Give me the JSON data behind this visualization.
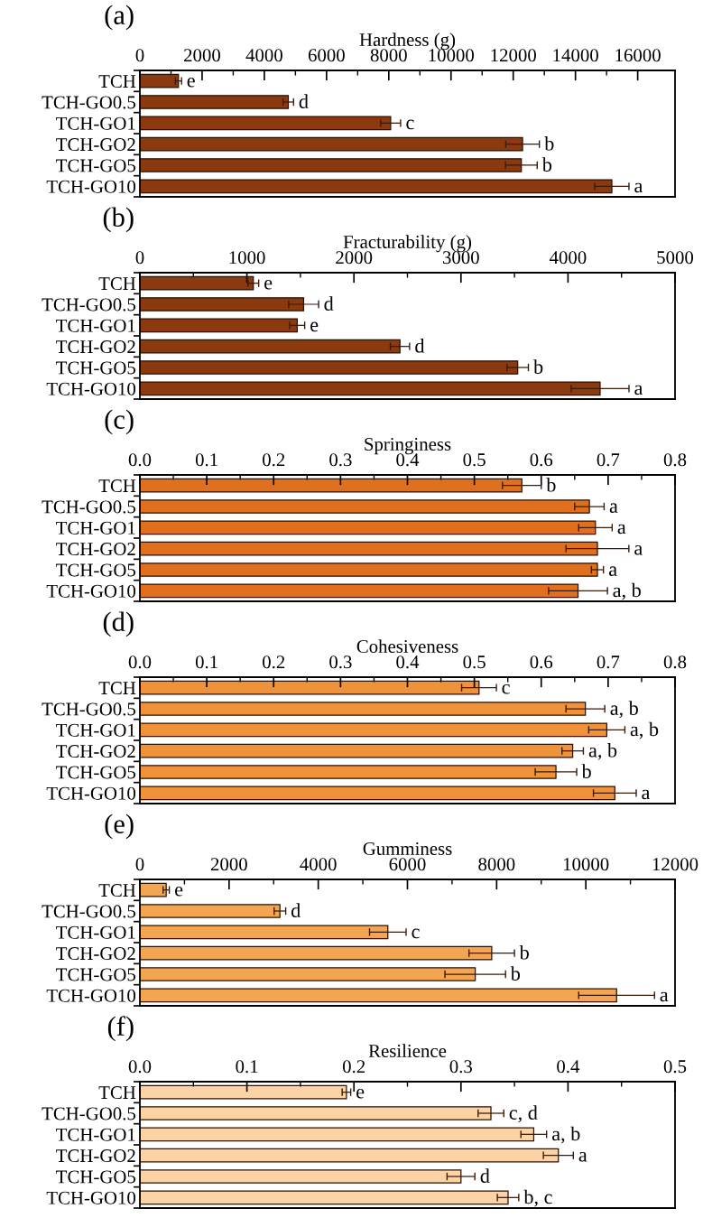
{
  "chart_data": [
    {
      "type": "bar",
      "orientation": "horizontal",
      "title": "(a)",
      "xlabel": "Hardness (g)",
      "categories": [
        "TCH",
        "TCH-GO0.5",
        "TCH-GO1",
        "TCH-GO2",
        "TCH-GO5",
        "TCH-GO10"
      ],
      "color": "#8b3a0f",
      "values": [
        1240,
        4770,
        8060,
        12300,
        12260,
        15170
      ],
      "errors": [
        100,
        170,
        320,
        540,
        510,
        550
      ],
      "xlim": [
        0,
        17200
      ],
      "xticks": [
        0,
        2000,
        4000,
        6000,
        8000,
        10000,
        12000,
        14000,
        16000
      ],
      "annotations": [
        {
          "text": "e",
          "x": 1340,
          "y": "TCH"
        },
        {
          "text": "d",
          "x": 4940,
          "y": "TCH-GO0.5"
        },
        {
          "text": "c",
          "x": 8380,
          "y": "TCH-GO1"
        },
        {
          "text": "b",
          "x": 12840,
          "y": "TCH-GO2"
        },
        {
          "text": "b",
          "x": 12770,
          "y": "TCH-GO5"
        },
        {
          "text": "a",
          "x": 15720,
          "y": "TCH-GO10"
        }
      ]
    },
    {
      "type": "bar",
      "orientation": "horizontal",
      "title": "(b)",
      "xlabel": "Fracturability (g)",
      "categories": [
        "TCH",
        "TCH-GO0.5",
        "TCH-GO1",
        "TCH-GO2",
        "TCH-GO5",
        "TCH-GO10"
      ],
      "color": "#8b3a0f",
      "values": [
        1060,
        1530,
        1470,
        2430,
        3530,
        4300
      ],
      "errors": [
        50,
        140,
        70,
        90,
        100,
        270
      ],
      "xlim": [
        0,
        5000
      ],
      "xticks": [
        0,
        1000,
        2000,
        3000,
        4000,
        5000
      ],
      "annotations": [
        {
          "text": "e",
          "x": 1110,
          "y": "TCH"
        },
        {
          "text": "d",
          "x": 1670,
          "y": "TCH-GO0.5"
        },
        {
          "text": "e",
          "x": 1540,
          "y": "TCH-GO1"
        },
        {
          "text": "d",
          "x": 2520,
          "y": "TCH-GO2"
        },
        {
          "text": "b",
          "x": 3630,
          "y": "TCH-GO5"
        },
        {
          "text": "a",
          "x": 4570,
          "y": "TCH-GO10"
        }
      ]
    },
    {
      "type": "bar",
      "orientation": "horizontal",
      "title": "(c)",
      "xlabel": "Springiness",
      "categories": [
        "TCH",
        "TCH-GO0.5",
        "TCH-GO1",
        "TCH-GO2",
        "TCH-GO5",
        "TCH-GO10"
      ],
      "color": "#e0701e",
      "values": [
        0.571,
        0.672,
        0.681,
        0.684,
        0.684,
        0.655
      ],
      "errors": [
        0.029,
        0.022,
        0.025,
        0.047,
        0.009,
        0.044
      ],
      "xlim": [
        0,
        0.8
      ],
      "xticks": [
        {
          "value": 0,
          "label": "0.0"
        },
        {
          "value": 0.1,
          "label": "0.1"
        },
        {
          "value": 0.2,
          "label": "0.2"
        },
        {
          "value": 0.3,
          "label": "0.3"
        },
        {
          "value": 0.4,
          "label": "0.4"
        },
        {
          "value": 0.5,
          "label": "0.5"
        },
        {
          "value": 0.6,
          "label": "0.6"
        },
        {
          "value": 0.7,
          "label": "0.7"
        },
        {
          "value": 0.8,
          "label": "0.8"
        }
      ],
      "annotations": [
        {
          "text": "b",
          "x": 0.6,
          "y": "TCH"
        },
        {
          "text": "a",
          "x": 0.694,
          "y": "TCH-GO0.5"
        },
        {
          "text": "a",
          "x": 0.706,
          "y": "TCH-GO1"
        },
        {
          "text": "a",
          "x": 0.731,
          "y": "TCH-GO2"
        },
        {
          "text": "a",
          "x": 0.693,
          "y": "TCH-GO5"
        },
        {
          "text": "a, b",
          "x": 0.699,
          "y": "TCH-GO10"
        }
      ]
    },
    {
      "type": "bar",
      "orientation": "horizontal",
      "title": "(d)",
      "xlabel": "Cohesiveness",
      "categories": [
        "TCH",
        "TCH-GO0.5",
        "TCH-GO1",
        "TCH-GO2",
        "TCH-GO5",
        "TCH-GO10"
      ],
      "color": "#f0923a",
      "values": [
        0.507,
        0.666,
        0.698,
        0.647,
        0.622,
        0.71
      ],
      "errors": [
        0.026,
        0.029,
        0.027,
        0.016,
        0.031,
        0.032
      ],
      "xlim": [
        0,
        0.8
      ],
      "xticks": [
        {
          "value": 0,
          "label": "0.0"
        },
        {
          "value": 0.1,
          "label": "0.1"
        },
        {
          "value": 0.2,
          "label": "0.2"
        },
        {
          "value": 0.3,
          "label": "0.3"
        },
        {
          "value": 0.4,
          "label": "0.4"
        },
        {
          "value": 0.5,
          "label": "0.5"
        },
        {
          "value": 0.6,
          "label": "0.6"
        },
        {
          "value": 0.7,
          "label": "0.7"
        },
        {
          "value": 0.8,
          "label": "0.8"
        }
      ],
      "annotations": [
        {
          "text": "c",
          "x": 0.533,
          "y": "TCH"
        },
        {
          "text": "a, b",
          "x": 0.695,
          "y": "TCH-GO0.5"
        },
        {
          "text": "a, b",
          "x": 0.725,
          "y": "TCH-GO1"
        },
        {
          "text": "a, b",
          "x": 0.663,
          "y": "TCH-GO2"
        },
        {
          "text": "b",
          "x": 0.653,
          "y": "TCH-GO5"
        },
        {
          "text": "a",
          "x": 0.742,
          "y": "TCH-GO10"
        }
      ]
    },
    {
      "type": "bar",
      "orientation": "horizontal",
      "title": "(e)",
      "xlabel": "Gumminess",
      "categories": [
        "TCH",
        "TCH-GO0.5",
        "TCH-GO1",
        "TCH-GO2",
        "TCH-GO5",
        "TCH-GO10"
      ],
      "color": "#f3a552",
      "values": [
        590,
        3140,
        5560,
        7890,
        7520,
        10690
      ],
      "errors": [
        70,
        130,
        410,
        510,
        680,
        850
      ],
      "xlim": [
        0,
        12000
      ],
      "xticks": [
        0,
        2000,
        4000,
        6000,
        8000,
        10000,
        12000
      ],
      "annotations": [
        {
          "text": "e",
          "x": 660,
          "y": "TCH"
        },
        {
          "text": "d",
          "x": 3270,
          "y": "TCH-GO0.5"
        },
        {
          "text": "c",
          "x": 5970,
          "y": "TCH-GO1"
        },
        {
          "text": "b",
          "x": 8400,
          "y": "TCH-GO2"
        },
        {
          "text": "b",
          "x": 8200,
          "y": "TCH-GO5"
        },
        {
          "text": "a",
          "x": 11540,
          "y": "TCH-GO10"
        }
      ]
    },
    {
      "type": "bar",
      "orientation": "horizontal",
      "title": "(f)",
      "xlabel": "Resilience",
      "categories": [
        "TCH",
        "TCH-GO0.5",
        "TCH-GO1",
        "TCH-GO2",
        "TCH-GO5",
        "TCH-GO10"
      ],
      "color": "#fcd3a5",
      "values": [
        0.193,
        0.328,
        0.368,
        0.391,
        0.3,
        0.344
      ],
      "errors": [
        0.004,
        0.012,
        0.012,
        0.014,
        0.013,
        0.01
      ],
      "xlim": [
        0,
        0.5
      ],
      "xticks": [
        {
          "value": 0,
          "label": "0.0"
        },
        {
          "value": 0.1,
          "label": "0.1"
        },
        {
          "value": 0.2,
          "label": "0.2"
        },
        {
          "value": 0.3,
          "label": "0.3"
        },
        {
          "value": 0.4,
          "label": "0.4"
        },
        {
          "value": 0.5,
          "label": "0.5"
        }
      ],
      "annotations": [
        {
          "text": "e",
          "x": 0.197,
          "y": "TCH"
        },
        {
          "text": "c, d",
          "x": 0.34,
          "y": "TCH-GO0.5"
        },
        {
          "text": "a, b",
          "x": 0.38,
          "y": "TCH-GO1"
        },
        {
          "text": "a",
          "x": 0.405,
          "y": "TCH-GO2"
        },
        {
          "text": "d",
          "x": 0.313,
          "y": "TCH-GO5"
        },
        {
          "text": "b, c",
          "x": 0.354,
          "y": "TCH-GO10"
        }
      ]
    }
  ]
}
